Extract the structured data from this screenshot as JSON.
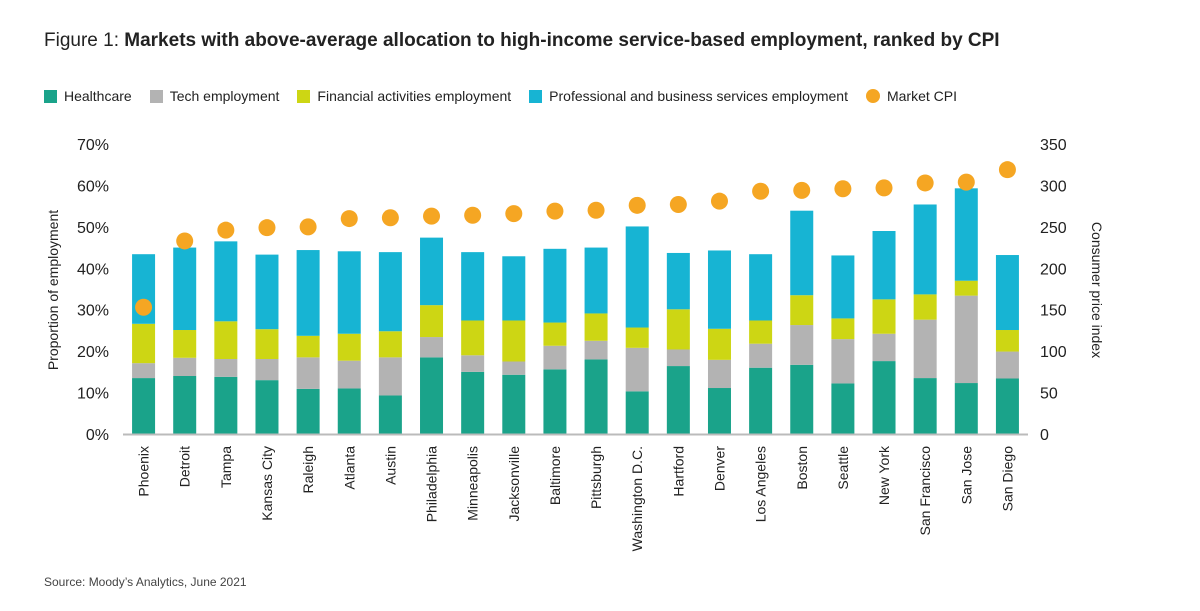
{
  "title": {
    "prefix": "Figure 1: ",
    "text": "Markets with above-average allocation to high-income service-based employment, ranked by CPI"
  },
  "source": "Source: Moody’s Analytics, June 2021",
  "colors": {
    "healthcare": "#1aa38a",
    "tech": "#b3b3b3",
    "financial": "#cdd614",
    "professional": "#17b4d3",
    "cpi": "#f5a623"
  },
  "chart_data": {
    "type": "bar",
    "stacked": true,
    "legend_position": "top-left",
    "grid": false,
    "ylabel": "Proportion of employment",
    "y2label": "Consumer price index",
    "ylim": [
      0,
      70
    ],
    "y2lim": [
      0,
      350
    ],
    "yticks": [
      "0%",
      "10%",
      "20%",
      "30%",
      "40%",
      "50%",
      "60%",
      "70%"
    ],
    "y2ticks": [
      "0",
      "50",
      "100",
      "150",
      "200",
      "250",
      "300",
      "350"
    ],
    "categories": [
      "Phoenix",
      "Detroit",
      "Tampa",
      "Kansas City",
      "Raleigh",
      "Atlanta",
      "Austin",
      "Philadelphia",
      "Minneapolis",
      "Jacksonville",
      "Baltimore",
      "Pittsburgh",
      "Washington D.C.",
      "Hartford",
      "Denver",
      "Los Angeles",
      "Boston",
      "Seattle",
      "New York",
      "San Francisco",
      "San Jose",
      "San Diego"
    ],
    "series": [
      {
        "name": "Healthcare",
        "key": "healthcare",
        "values": [
          13.5,
          14.0,
          13.8,
          13.0,
          10.9,
          11.0,
          9.3,
          18.5,
          15.0,
          14.3,
          15.6,
          18.0,
          10.3,
          16.4,
          11.1,
          16.0,
          16.7,
          12.2,
          17.6,
          13.5,
          12.3,
          13.4
        ]
      },
      {
        "name": "Tech employment",
        "key": "tech",
        "values": [
          3.6,
          4.4,
          4.3,
          5.1,
          7.6,
          6.7,
          9.2,
          4.9,
          4.0,
          3.2,
          5.7,
          4.5,
          10.5,
          4.0,
          6.8,
          5.8,
          9.6,
          10.7,
          6.6,
          14.1,
          21.1,
          6.5
        ]
      },
      {
        "name": "Financial activities employment",
        "key": "financial",
        "values": [
          9.5,
          6.7,
          9.1,
          7.2,
          5.2,
          6.5,
          6.3,
          7.7,
          8.4,
          9.9,
          5.6,
          6.6,
          4.9,
          9.7,
          7.5,
          5.6,
          7.2,
          5.0,
          8.3,
          6.1,
          3.6,
          5.2
        ]
      },
      {
        "name": "Professional and business services employment",
        "key": "professional",
        "values": [
          16.8,
          19.9,
          19.3,
          18.0,
          20.7,
          19.9,
          19.1,
          16.3,
          16.5,
          15.5,
          17.8,
          15.9,
          24.4,
          13.6,
          18.9,
          16.0,
          20.4,
          15.2,
          16.5,
          21.7,
          22.3,
          18.1
        ]
      }
    ],
    "cpi": {
      "name": "Market CPI",
      "axis": "right",
      "values": [
        153,
        233,
        246,
        249,
        250,
        260,
        261,
        263,
        264,
        266,
        269,
        270,
        276,
        277,
        281,
        293,
        294,
        296,
        297,
        303,
        304,
        319
      ]
    }
  }
}
